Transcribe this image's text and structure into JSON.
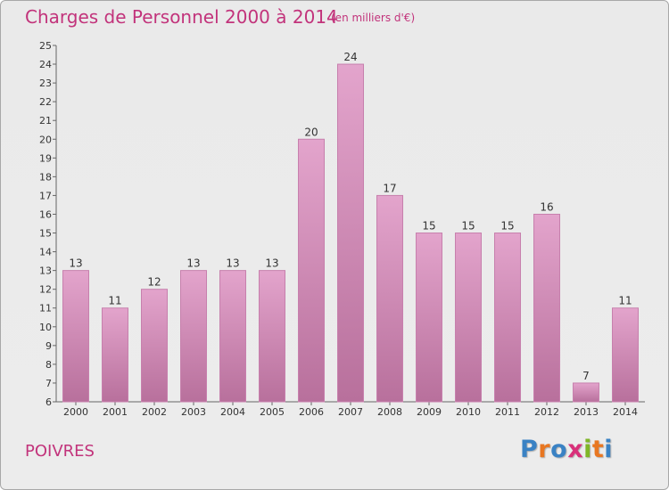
{
  "title": "Charges de Personnel 2000 à 2014",
  "subtitle": "(en milliers d'€)",
  "commune": "POIVRES",
  "logo": {
    "letters": [
      "P",
      "r",
      "o",
      "x",
      "i",
      "t",
      "i"
    ],
    "colors": [
      "#3a82c4",
      "#e87722",
      "#3a82c4",
      "#d9307a",
      "#7fb627",
      "#e87722",
      "#3a82c4"
    ]
  },
  "colors": {
    "accent": "#c2337b",
    "bar_top": "#e3a4cc",
    "bar_bottom": "#b8709c",
    "bar_edge": "#c780ad"
  },
  "chart_data": {
    "type": "bar",
    "title": "Charges de Personnel 2000 à 2014",
    "subtitle": "(en milliers d'€)",
    "categories": [
      "2000",
      "2001",
      "2002",
      "2003",
      "2004",
      "2005",
      "2006",
      "2007",
      "2008",
      "2009",
      "2010",
      "2011",
      "2012",
      "2013",
      "2014"
    ],
    "values": [
      13,
      11,
      12,
      13,
      13,
      13,
      20,
      24,
      17,
      15,
      15,
      15,
      16,
      7,
      11
    ],
    "ylim": [
      6,
      25
    ],
    "yticks": [
      6,
      7,
      8,
      9,
      10,
      11,
      12,
      13,
      14,
      15,
      16,
      17,
      18,
      19,
      20,
      21,
      22,
      23,
      24,
      25
    ],
    "grid": false,
    "xlabel": "",
    "ylabel": ""
  }
}
